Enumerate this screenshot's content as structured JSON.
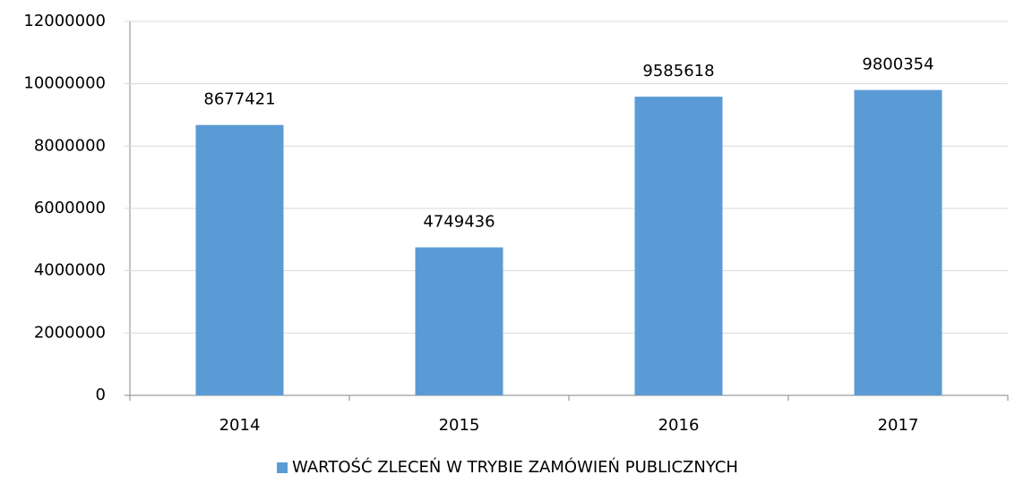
{
  "chart_data": {
    "type": "bar",
    "categories": [
      "2014",
      "2015",
      "2016",
      "2017"
    ],
    "series": [
      {
        "name": "WARTOŚĆ ZLECEŃ W TRYBIE ZAMÓWIEŃ PUBLICZNYCH",
        "color": "#5b9bd5",
        "values": [
          8677421,
          4749436,
          9585618,
          9800354
        ]
      }
    ],
    "ylim": [
      0,
      12000000
    ],
    "yticks": [
      0,
      2000000,
      4000000,
      6000000,
      8000000,
      10000000,
      12000000
    ],
    "grid": true,
    "legend": "bottom"
  }
}
